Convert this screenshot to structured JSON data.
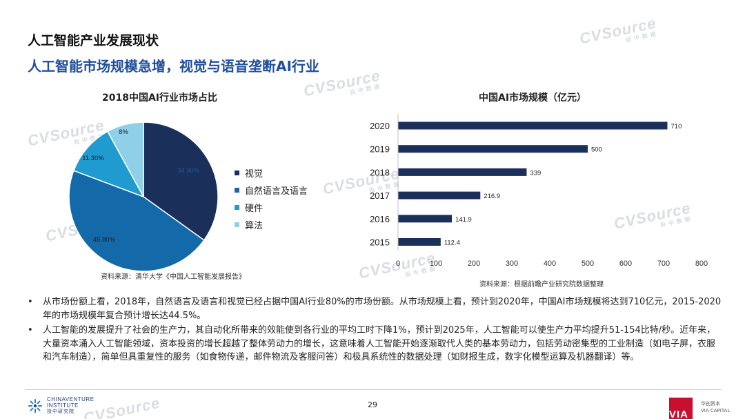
{
  "header": {
    "title": "人工智能产业发展现状",
    "subtitle": "人工智能市场规模急增，视觉与语音垄断AI行业"
  },
  "watermark": {
    "text": "CVSource",
    "subtext": "投中数据"
  },
  "pie": {
    "title": "2018中国AI行业市场占比",
    "source": "资料来源：清华大学《中国人工智能发展报告》",
    "legend": [
      "视觉",
      "自然语言及语言",
      "硬件",
      "算法"
    ]
  },
  "bar": {
    "title": "中国AI市场规模（亿元）",
    "source": "资料来源：根据前瞻产业研究院数据整理"
  },
  "chart_data": [
    {
      "type": "pie",
      "title": "2018中国AI行业市场占比",
      "categories": [
        "视觉",
        "自然语言及语言",
        "硬件",
        "算法"
      ],
      "values": [
        34.9,
        45.8,
        11.3,
        8.0
      ],
      "labels": [
        "34.90%",
        "45.80%",
        "11.30%",
        "8%"
      ],
      "colors": [
        "#1b2f5b",
        "#1469a8",
        "#1f9bcf",
        "#8fd0e8"
      ],
      "legend": "right"
    },
    {
      "type": "bar",
      "orientation": "horizontal",
      "title": "中国AI市场规模（亿元）",
      "categories": [
        "2020",
        "2019",
        "2018",
        "2017",
        "2016",
        "2015"
      ],
      "values": [
        710,
        500,
        339,
        216.9,
        141.9,
        112.4
      ],
      "labels": [
        "710",
        "500",
        "339",
        "216.9",
        "141.9",
        "112.4"
      ],
      "xlim": [
        0,
        800
      ],
      "xticks": [
        "0",
        "100",
        "200",
        "300",
        "400",
        "500",
        "600",
        "700",
        "800"
      ],
      "color": "#1b2f5b",
      "grid": false
    }
  ],
  "bullets": [
    "从市场份额上看，2018年，自然语言及语言和视觉已经占据中国AI行业80%的市场份额。从市场规模上看，预计到2020年，中国AI市场规模将达到710亿元，2015-2020年的市场规模年复合预计增长达44.5%。",
    "人工智能的发展提升了社会的生产力，其自动化所带来的效能使到各行业的平均工时下降1%，预计到2025年，人工智能可以使生产力平均提升51-154比特/秒。近年来，大量资本涌入人工智能领域，资本投资的增长超越了整体劳动力的增长，这意味着人工智能开始逐渐取代人类的基本劳动力，包括劳动密集型的工业制造（如电子屏，衣服和汽车制造），简单但具重复性的服务（如食物传递，邮件物流及客服问答）和极具系统性的数据处理（如财报生成，数字化模型运算及机器翻译）等。"
  ],
  "footer": {
    "logo_line1": "CHINAVENTURE",
    "logo_line2": "INSTITUTE",
    "logo_line3": "投中研究院",
    "page": "29",
    "via_text": "VIA",
    "via_label1": "华创资本",
    "via_label2": "VIA CAPITAL"
  }
}
